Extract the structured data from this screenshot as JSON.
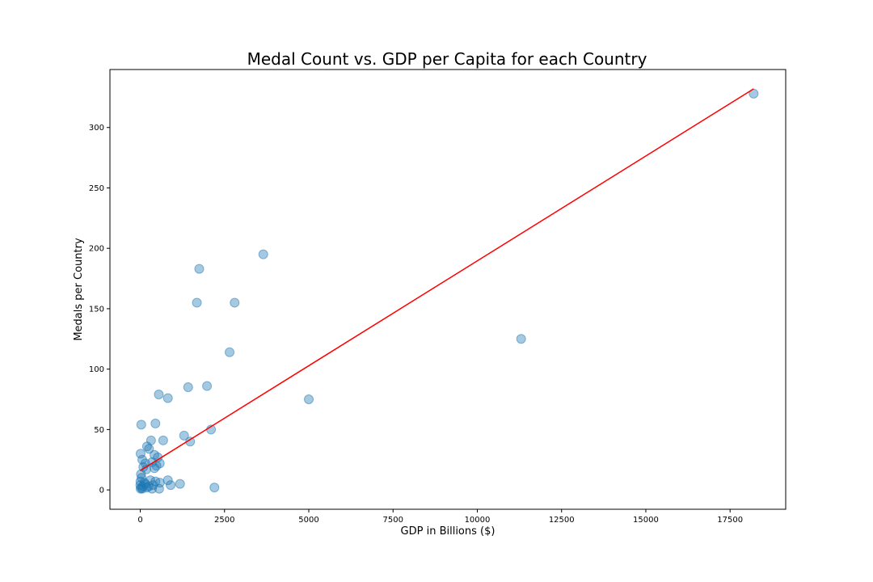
{
  "chart_data": {
    "type": "scatter",
    "title": "Medal Count vs. GDP per Capita for each Country",
    "xlabel": "GDP in Billions ($)",
    "ylabel": "Medals per Country",
    "xlim": [
      -900,
      19150
    ],
    "ylim": [
      -16,
      348
    ],
    "xticks": [
      0,
      2500,
      5000,
      7500,
      10000,
      12500,
      15000,
      17500
    ],
    "yticks": [
      0,
      50,
      100,
      150,
      200,
      250,
      300
    ],
    "grid": false,
    "legend": "none",
    "colors": {
      "points": "#1f77b4",
      "trendline": "#ff0000"
    },
    "trendline": {
      "x": [
        0,
        18200
      ],
      "y": [
        16,
        332
      ]
    },
    "points": [
      {
        "x": 18200,
        "y": 328
      },
      {
        "x": 11300,
        "y": 125
      },
      {
        "x": 5000,
        "y": 75
      },
      {
        "x": 3650,
        "y": 195
      },
      {
        "x": 2800,
        "y": 155
      },
      {
        "x": 2650,
        "y": 114
      },
      {
        "x": 1750,
        "y": 183
      },
      {
        "x": 1680,
        "y": 155
      },
      {
        "x": 1980,
        "y": 86
      },
      {
        "x": 1420,
        "y": 85
      },
      {
        "x": 2100,
        "y": 50
      },
      {
        "x": 2200,
        "y": 2
      },
      {
        "x": 1300,
        "y": 45
      },
      {
        "x": 1480,
        "y": 40
      },
      {
        "x": 550,
        "y": 79
      },
      {
        "x": 820,
        "y": 76
      },
      {
        "x": 450,
        "y": 55
      },
      {
        "x": 30,
        "y": 54
      },
      {
        "x": 320,
        "y": 41
      },
      {
        "x": 680,
        "y": 41
      },
      {
        "x": 200,
        "y": 36
      },
      {
        "x": 260,
        "y": 34
      },
      {
        "x": 10,
        "y": 30
      },
      {
        "x": 420,
        "y": 29
      },
      {
        "x": 520,
        "y": 27
      },
      {
        "x": 60,
        "y": 25
      },
      {
        "x": 150,
        "y": 22
      },
      {
        "x": 350,
        "y": 23
      },
      {
        "x": 580,
        "y": 22
      },
      {
        "x": 480,
        "y": 20
      },
      {
        "x": 420,
        "y": 18
      },
      {
        "x": 180,
        "y": 17
      },
      {
        "x": 90,
        "y": 19
      },
      {
        "x": 20,
        "y": 13
      },
      {
        "x": 40,
        "y": 10
      },
      {
        "x": 5,
        "y": 7
      },
      {
        "x": 120,
        "y": 6
      },
      {
        "x": 820,
        "y": 8
      },
      {
        "x": 1180,
        "y": 5
      },
      {
        "x": 900,
        "y": 4
      },
      {
        "x": 580,
        "y": 6
      },
      {
        "x": 560,
        "y": 1
      },
      {
        "x": 450,
        "y": 7
      },
      {
        "x": 300,
        "y": 8
      },
      {
        "x": 250,
        "y": 3
      },
      {
        "x": 380,
        "y": 4
      },
      {
        "x": 200,
        "y": 2
      },
      {
        "x": 150,
        "y": 5
      },
      {
        "x": 80,
        "y": 3
      },
      {
        "x": 30,
        "y": 2
      },
      {
        "x": 10,
        "y": 1
      },
      {
        "x": 60,
        "y": 1
      },
      {
        "x": 350,
        "y": 1
      },
      {
        "x": 0,
        "y": 4
      }
    ]
  }
}
